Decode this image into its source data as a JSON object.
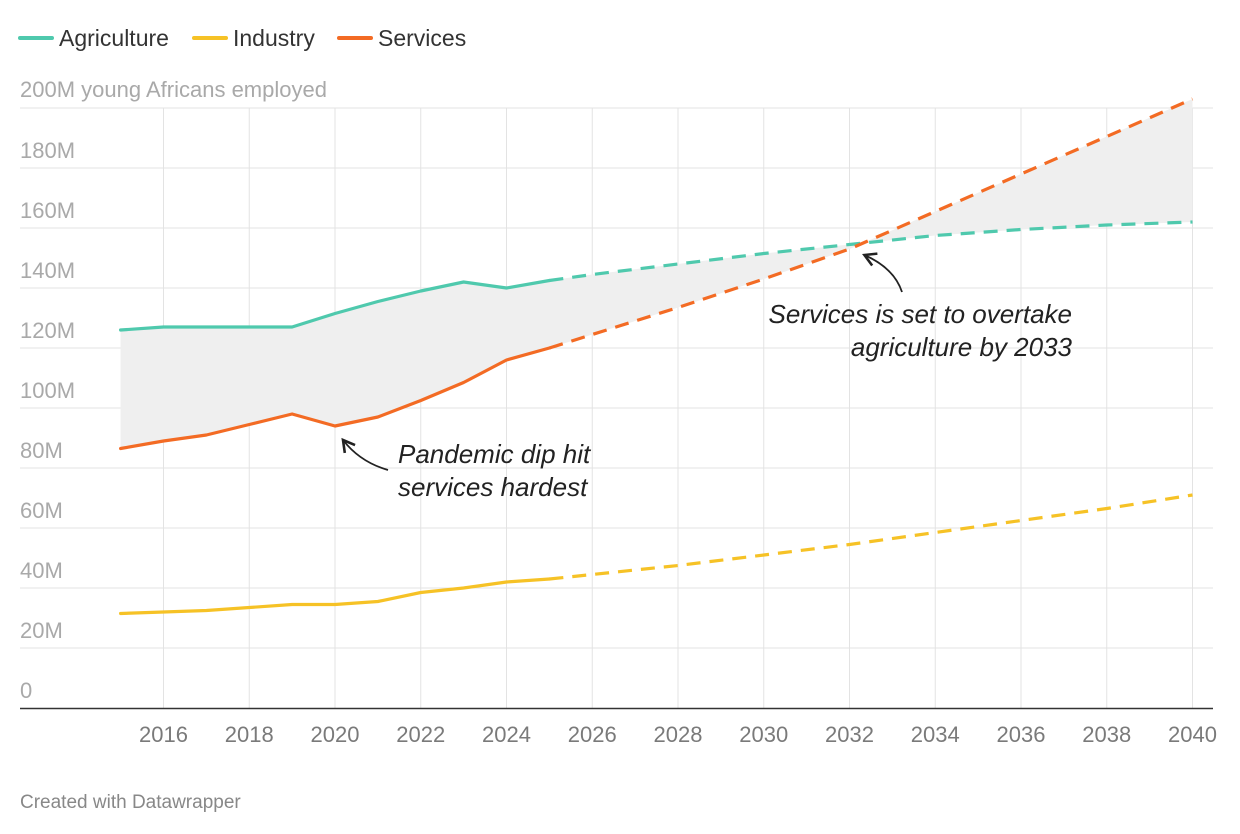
{
  "footer": {
    "credit": "Created with Datawrapper"
  },
  "colors": {
    "agriculture": "#4fc9ad",
    "industry": "#f6c226",
    "services": "#f36b24",
    "gap_fill": "#efefef",
    "grid": "#e3e3e3",
    "baseline": "#333333"
  },
  "annotations": [
    {
      "lines": [
        "Pandemic dip hit",
        "services hardest"
      ],
      "points_to": {
        "x": 2020,
        "y": 94
      }
    },
    {
      "lines": [
        "Services is set to overtake",
        "agriculture by 2033"
      ],
      "points_to": {
        "x": 2032.3,
        "y": 155
      }
    }
  ],
  "chart_data": {
    "type": "line",
    "ylabel": "200M young Africans employed",
    "y_tick_labels": [
      "0",
      "20M",
      "40M",
      "60M",
      "80M",
      "100M",
      "120M",
      "140M",
      "160M",
      "180M"
    ],
    "y_ticks": [
      0,
      20,
      40,
      60,
      80,
      100,
      120,
      140,
      160,
      180
    ],
    "x_tick_labels": [
      "2016",
      "2018",
      "2020",
      "2022",
      "2024",
      "2026",
      "2028",
      "2030",
      "2032",
      "2034",
      "2036",
      "2038",
      "2040"
    ],
    "x_ticks": [
      2016,
      2018,
      2020,
      2022,
      2024,
      2026,
      2028,
      2030,
      2032,
      2034,
      2036,
      2038,
      2040
    ],
    "xlim": [
      2014,
      2040.5
    ],
    "ylim": [
      0,
      200
    ],
    "grid": true,
    "legend_position": "top-left",
    "projection_start": 2025,
    "shaded_gap_between": [
      "Agriculture",
      "Services"
    ],
    "series": [
      {
        "name": "Agriculture",
        "color": "#4fc9ad",
        "x": [
          2015,
          2016,
          2017,
          2018,
          2019,
          2020,
          2021,
          2022,
          2023,
          2024,
          2025,
          2026,
          2028,
          2030,
          2032,
          2034,
          2036,
          2038,
          2040
        ],
        "values": [
          126,
          127,
          127,
          127,
          127,
          131.5,
          135.5,
          139,
          142,
          140,
          142.5,
          144.5,
          148,
          151.5,
          154.5,
          157.5,
          159.5,
          161,
          162
        ]
      },
      {
        "name": "Industry",
        "color": "#f6c226",
        "x": [
          2015,
          2016,
          2017,
          2018,
          2019,
          2020,
          2021,
          2022,
          2023,
          2024,
          2025,
          2026,
          2028,
          2030,
          2032,
          2034,
          2036,
          2038,
          2040
        ],
        "values": [
          31.5,
          32,
          32.5,
          33.5,
          34.5,
          34.5,
          35.5,
          38.5,
          40,
          42,
          43,
          44.5,
          47.5,
          51,
          54.5,
          58.5,
          62.5,
          66.5,
          71
        ]
      },
      {
        "name": "Services",
        "color": "#f36b24",
        "x": [
          2015,
          2016,
          2017,
          2018,
          2019,
          2020,
          2021,
          2022,
          2023,
          2024,
          2025,
          2026,
          2028,
          2030,
          2032,
          2034,
          2036,
          2038,
          2040
        ],
        "values": [
          86.5,
          89,
          91,
          94.5,
          98,
          94,
          97,
          102.5,
          108.5,
          116,
          120,
          124.5,
          133.5,
          143,
          153,
          165.5,
          178,
          190.5,
          203
        ]
      }
    ]
  }
}
